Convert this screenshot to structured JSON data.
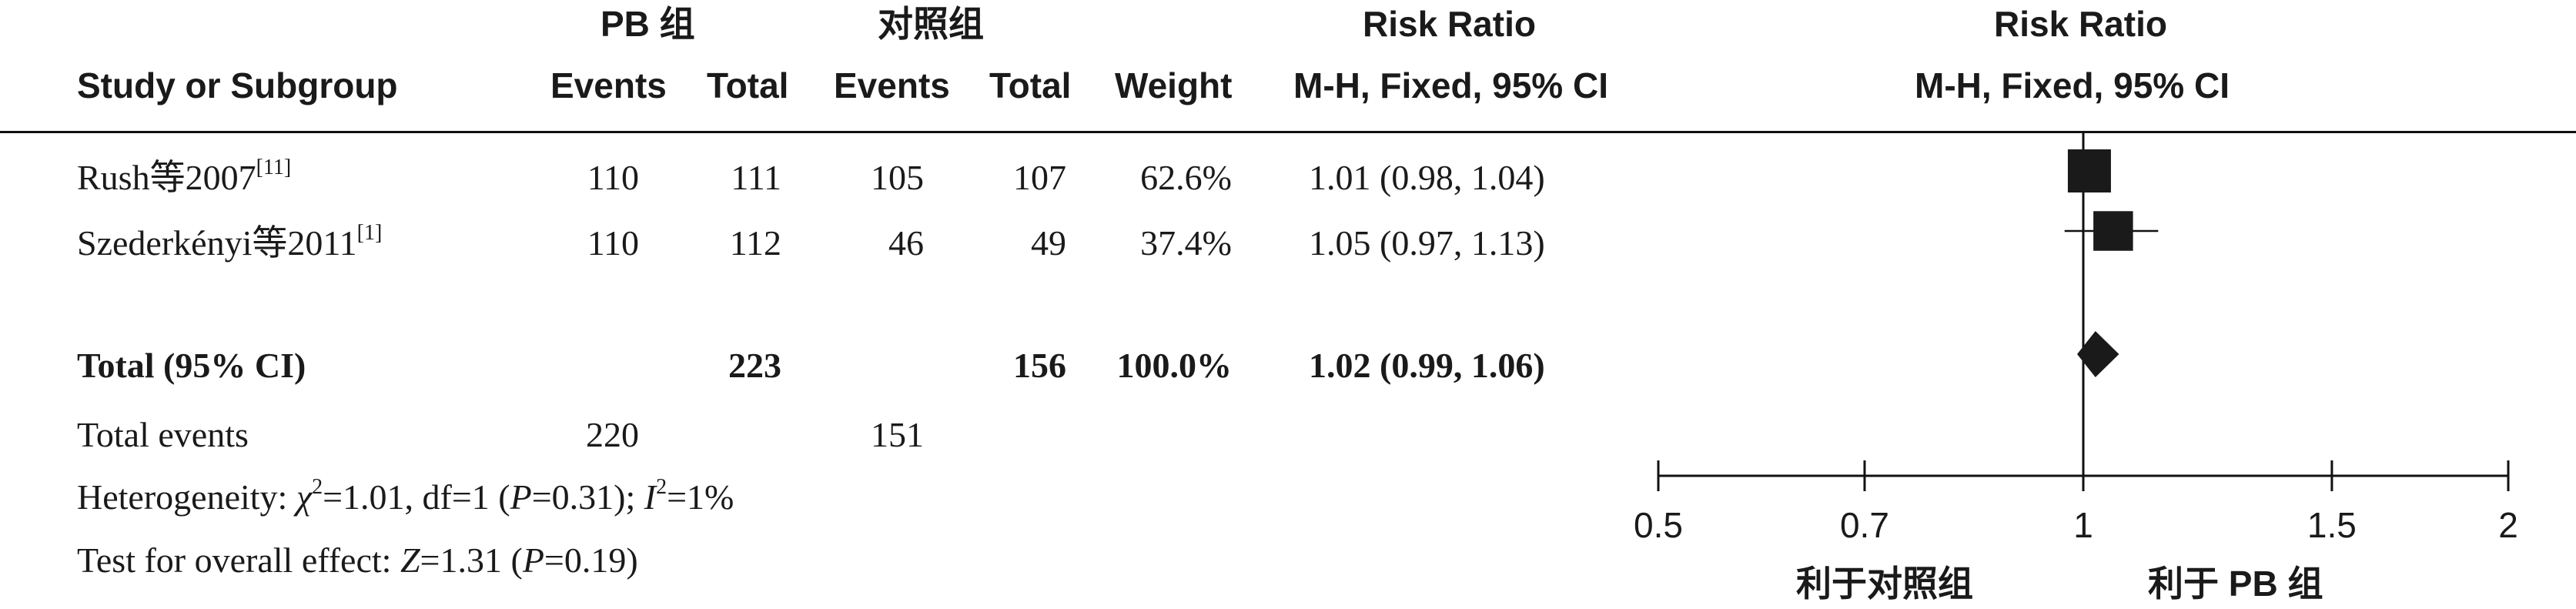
{
  "header": {
    "group1": "PB 组",
    "group2": "对照组",
    "study_col": "Study or Subgroup",
    "events1": "Events",
    "total1": "Total",
    "events2": "Events",
    "total2": "Total",
    "weight": "Weight",
    "rr_title": "Risk Ratio",
    "rr_method": "M-H, Fixed, 95% CI",
    "plot_title": "Risk Ratio",
    "plot_method": "M-H, Fixed, 95% CI"
  },
  "studies": [
    {
      "name": "Rush等2007",
      "ref": "[11]",
      "events1": "110",
      "total1": "111",
      "events2": "105",
      "total2": "107",
      "weight": "62.6%",
      "ci_text": "1.01 (0.98, 1.04)"
    },
    {
      "name": "Szederkényi等2011",
      "ref": "[1]",
      "events1": "110",
      "total1": "112",
      "events2": "46",
      "total2": "49",
      "weight": "37.4%",
      "ci_text": "1.05 (0.97, 1.13)"
    }
  ],
  "total": {
    "label": "Total (95% CI)",
    "total1": "223",
    "total2": "156",
    "weight": "100.0%",
    "ci_text": "1.02 (0.99, 1.06)"
  },
  "total_events": {
    "label": "Total events",
    "events1": "220",
    "events2": "151"
  },
  "heterogeneity": {
    "label": "Heterogeneity: ",
    "chi_sym": "χ",
    "chi_sup": "2",
    "chi_rest": "=1.01, df=1 (",
    "p_sym": "P",
    "p_rest": "=0.31); ",
    "i_sym": "I",
    "i_sup": "2",
    "i_rest": "=1%"
  },
  "overall": {
    "label": "Test for overall effect: ",
    "z_sym": "Z",
    "z_rest": "=1.31 (",
    "p_sym": "P",
    "p_rest": "=0.19)"
  },
  "axis_left_label": "利于对照组",
  "axis_right_label": "利于 PB 组",
  "chart_data": {
    "type": "forest",
    "scale": "log",
    "xlim": [
      0.5,
      2
    ],
    "ticks": [
      0.5,
      0.7,
      1,
      1.5,
      2
    ],
    "tick_labels": [
      "0.5",
      "0.7",
      "1",
      "1.5",
      "2"
    ],
    "null_line": 1,
    "studies": [
      {
        "name": "Rush等2007",
        "estimate": 1.01,
        "lower": 0.98,
        "upper": 1.04,
        "weight": 62.6
      },
      {
        "name": "Szederkényi等2011",
        "estimate": 1.05,
        "lower": 0.97,
        "upper": 1.13,
        "weight": 37.4
      }
    ],
    "pooled": {
      "estimate": 1.02,
      "lower": 0.99,
      "upper": 1.06
    }
  }
}
